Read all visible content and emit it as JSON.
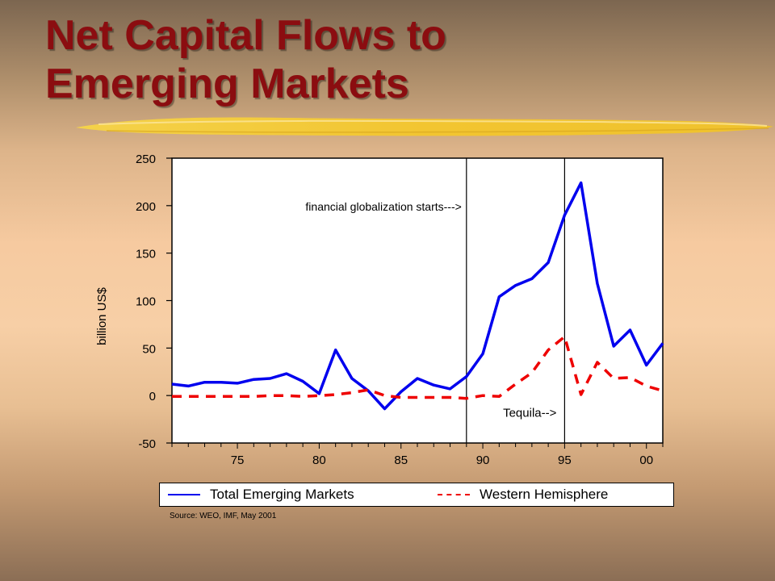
{
  "title_lines": [
    "Net Capital Flows to",
    "Emerging Markets"
  ],
  "source": "Source: WEO, IMF, May 2001",
  "colors": {
    "title": "#8b0d10",
    "total": "#0000ee",
    "western": "#ee0000"
  },
  "chart_data": {
    "type": "line",
    "title": "",
    "xlabel": "",
    "ylabel": "billion US$",
    "ylim": [
      -50,
      250
    ],
    "xlim": [
      1971,
      2001
    ],
    "yticks": [
      -50,
      0,
      50,
      100,
      150,
      200,
      250
    ],
    "ytick_labels": [
      "-50",
      "0",
      "50",
      "100",
      "150",
      "200",
      "250"
    ],
    "xticks": [
      1975,
      1980,
      1985,
      1990,
      1995,
      2000
    ],
    "xtick_labels": [
      "75",
      "80",
      "85",
      "90",
      "95",
      "00"
    ],
    "grid": false,
    "legend_position": "bottom",
    "x": [
      1971,
      1972,
      1973,
      1974,
      1975,
      1976,
      1977,
      1978,
      1979,
      1980,
      1981,
      1982,
      1983,
      1984,
      1985,
      1986,
      1987,
      1988,
      1989,
      1990,
      1991,
      1992,
      1993,
      1994,
      1995,
      1996,
      1997,
      1998,
      1999,
      2000,
      2001
    ],
    "series": [
      {
        "name": "Total Emerging Markets",
        "style": "solid",
        "values": [
          12,
          10,
          14,
          14,
          13,
          17,
          18,
          23,
          15,
          2,
          48,
          18,
          5,
          -14,
          4,
          18,
          11,
          7,
          20,
          44,
          104,
          116,
          123,
          140,
          190,
          224,
          118,
          52,
          69,
          32,
          55
        ]
      },
      {
        "name": "Western Hemisphere",
        "style": "dashed",
        "values": [
          -1,
          -1,
          -1,
          -1,
          -1,
          -1,
          0,
          0,
          -1,
          0,
          1,
          3,
          6,
          0,
          -2,
          -2,
          -2,
          -2,
          -3,
          0,
          -1,
          12,
          24,
          48,
          62,
          1,
          35,
          18,
          19,
          10,
          5
        ]
      }
    ],
    "vlines": [
      1989,
      1995
    ],
    "annotations": [
      {
        "text": "financial globalization starts--->",
        "x": 1989,
        "y": 200
      },
      {
        "text": "Tequila-->",
        "x": 1995,
        "y": -18
      }
    ]
  }
}
